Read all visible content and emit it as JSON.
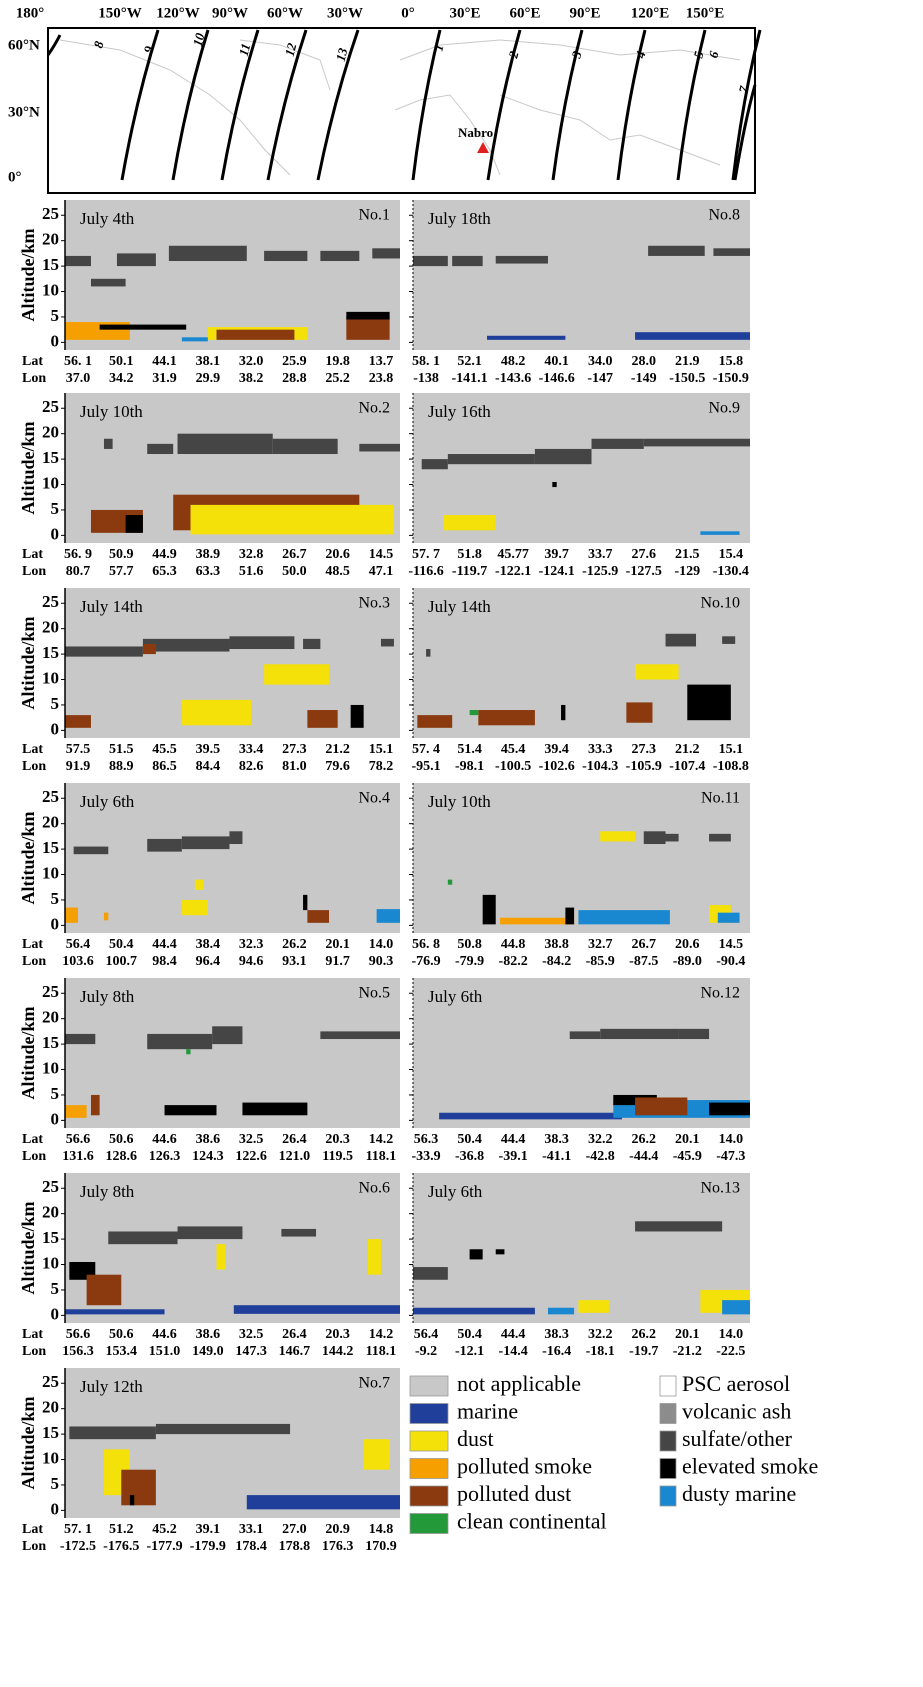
{
  "map": {
    "xticks": [
      "180°",
      "150°W",
      "120°W",
      "90°W",
      "60°W",
      "30°W",
      "0°",
      "30°E",
      "60°E",
      "90°E",
      "120°E",
      "150°E"
    ],
    "yticks": [
      "60°N",
      "30°N",
      "0°"
    ],
    "volcano": "Nabro",
    "tracks": [
      "1",
      "2",
      "3",
      "4",
      "5",
      "6",
      "7",
      "8",
      "9",
      "10",
      "11",
      "12",
      "13"
    ]
  },
  "y_axis_label": "Altitude/km",
  "lat_label": "Lat",
  "lon_label": "Lon",
  "ylim": [
    -1.5,
    28
  ],
  "yticks": [
    0,
    5,
    10,
    15,
    20,
    25
  ],
  "xlim": [
    -0.3,
    7.44
  ],
  "legend": [
    {
      "name": "not applicable",
      "color": "#c8c8c8"
    },
    {
      "name": "marine",
      "color": "#1f3f9a"
    },
    {
      "name": "dust",
      "color": "#f5e10a"
    },
    {
      "name": "polluted smoke",
      "color": "#f5a000"
    },
    {
      "name": "polluted dust",
      "color": "#8b3a10"
    },
    {
      "name": "clean continental",
      "color": "#23993a"
    },
    {
      "name": "PSC aerosol",
      "color": "#ffffff"
    },
    {
      "name": "volcanic ash",
      "color": "#8c8c8c"
    },
    {
      "name": "sulfate/other",
      "color": "#454545"
    },
    {
      "name": "elevated smoke",
      "color": "#000000"
    },
    {
      "name": "dusty marine",
      "color": "#1a88d0"
    }
  ],
  "panels": [
    {
      "date": "July 4th",
      "number": "No.1",
      "lat": [
        "56. 1",
        "50.1",
        "44.1",
        "38.1",
        "32.0",
        "25.9",
        "19.8",
        "13.7"
      ],
      "lon": [
        "37.0",
        "34.2",
        "31.9",
        "29.9",
        "38.2",
        "28.8",
        "25.2",
        "23.8"
      ],
      "layers": [
        [
          8,
          -0.3,
          0.3,
          15,
          17
        ],
        [
          8,
          0.9,
          1.8,
          15,
          17.5
        ],
        [
          8,
          2.1,
          3.9,
          16,
          19
        ],
        [
          8,
          4.3,
          5.3,
          16,
          18
        ],
        [
          8,
          5.6,
          6.5,
          16,
          18
        ],
        [
          8,
          6.8,
          7.44,
          16.5,
          18.5
        ],
        [
          8,
          0.3,
          1.1,
          11,
          12.5
        ],
        [
          2,
          3.0,
          5.3,
          0.5,
          3
        ],
        [
          4,
          3.2,
          5.0,
          0.5,
          2.5
        ],
        [
          4,
          6.2,
          7.2,
          0.5,
          5
        ],
        [
          9,
          6.2,
          7.2,
          4.5,
          6
        ],
        [
          3,
          -0.3,
          1.2,
          0.5,
          4
        ],
        [
          9,
          0.5,
          2.5,
          2.5,
          3.5
        ],
        [
          10,
          2.4,
          3.0,
          0.2,
          1
        ]
      ]
    },
    {
      "date": "July 18th",
      "number": "No.8",
      "lat": [
        "58. 1",
        "52.1",
        "48.2",
        "40.1",
        "34.0",
        "28.0",
        "21.9",
        "15.8"
      ],
      "lon": [
        "-138",
        "-141.1",
        "-143.6",
        "-146.6",
        "-147",
        "-149",
        "-150.5",
        "-150.9"
      ],
      "layers": [
        [
          8,
          -0.3,
          0.5,
          15,
          17
        ],
        [
          8,
          0.6,
          1.3,
          15,
          17
        ],
        [
          8,
          1.6,
          2.8,
          15.5,
          17
        ],
        [
          8,
          5.1,
          6.4,
          17,
          19
        ],
        [
          8,
          6.6,
          7.44,
          17,
          18.5
        ],
        [
          1,
          1.4,
          3.2,
          0.5,
          1.3
        ],
        [
          1,
          4.8,
          7.44,
          0.5,
          2
        ]
      ]
    },
    {
      "date": "July 10th",
      "number": "No.2",
      "lat": [
        "56. 9",
        "50.9",
        "44.9",
        "38.9",
        "32.8",
        "26.7",
        "20.6",
        "14.5"
      ],
      "lon": [
        "80.7",
        "57.7",
        "65.3",
        "63.3",
        "51.6",
        "50.0",
        "48.5",
        "47.1"
      ],
      "layers": [
        [
          8,
          0.6,
          0.8,
          17,
          19
        ],
        [
          8,
          1.6,
          2.2,
          16,
          18
        ],
        [
          8,
          2.3,
          4.5,
          16,
          20
        ],
        [
          8,
          4.5,
          6.0,
          16,
          19
        ],
        [
          8,
          6.5,
          7.44,
          16.5,
          18
        ],
        [
          4,
          2.2,
          6.5,
          1,
          8
        ],
        [
          4,
          0.3,
          1.5,
          0.5,
          5
        ],
        [
          2,
          2.6,
          7.3,
          0.2,
          6
        ],
        [
          9,
          1.1,
          1.5,
          0.5,
          4
        ]
      ]
    },
    {
      "date": "July 16th",
      "number": "No.9",
      "lat": [
        "57. 7",
        "51.8",
        "45.77",
        "39.7",
        "33.7",
        "27.6",
        "21.5",
        "15.4"
      ],
      "lon": [
        "-116.6",
        "-119.7",
        "-122.1",
        "-124.1",
        "-125.9",
        "-127.5",
        "-129",
        "-130.4"
      ],
      "layers": [
        [
          8,
          -0.1,
          0.5,
          13,
          15
        ],
        [
          8,
          0.5,
          2.5,
          14,
          16
        ],
        [
          8,
          2.5,
          3.8,
          14,
          17
        ],
        [
          8,
          3.8,
          5.0,
          17,
          19
        ],
        [
          8,
          5.0,
          7.44,
          17.5,
          19
        ],
        [
          2,
          0.4,
          1.6,
          1,
          4
        ],
        [
          10,
          6.3,
          7.2,
          0.1,
          0.8
        ],
        [
          9,
          2.9,
          3.0,
          9.5,
          10.5
        ]
      ]
    },
    {
      "date": "July 14th",
      "number": "No.3",
      "lat": [
        "57.5",
        "51.5",
        "45.5",
        "39.5",
        "33.4",
        "27.3",
        "21.2",
        "15.1"
      ],
      "lon": [
        "91.9",
        "88.9",
        "86.5",
        "84.4",
        "82.6",
        "81.0",
        "79.6",
        "78.2"
      ],
      "layers": [
        [
          8,
          -0.3,
          1.5,
          14.5,
          16.5
        ],
        [
          8,
          1.5,
          3.5,
          15.5,
          18
        ],
        [
          8,
          3.5,
          5.0,
          16,
          18.5
        ],
        [
          8,
          5.2,
          5.6,
          16,
          18
        ],
        [
          8,
          7.0,
          7.3,
          16.5,
          18
        ],
        [
          4,
          1.5,
          1.8,
          15,
          17
        ],
        [
          2,
          2.4,
          4.0,
          1,
          6
        ],
        [
          4,
          -0.3,
          0.3,
          0.5,
          3
        ],
        [
          4,
          5.3,
          6.0,
          0.5,
          4
        ],
        [
          9,
          6.3,
          6.6,
          0.5,
          5
        ],
        [
          2,
          4.3,
          5.8,
          9,
          13
        ]
      ]
    },
    {
      "date": "July 14th",
      "number": "No.10",
      "lat": [
        "57. 4",
        "51.4",
        "45.4",
        "39.4",
        "33.3",
        "27.3",
        "21.2",
        "15.1"
      ],
      "lon": [
        "-95.1",
        "-98.1",
        "-100.5",
        "-102.6",
        "-104.3",
        "-105.9",
        "-107.4",
        "-108.8"
      ],
      "layers": [
        [
          8,
          0,
          0.1,
          14.5,
          16
        ],
        [
          8,
          5.5,
          6.2,
          16.5,
          19
        ],
        [
          8,
          6.8,
          7.1,
          17,
          18.5
        ],
        [
          4,
          -0.2,
          0.6,
          0.5,
          3
        ],
        [
          4,
          1.2,
          2.5,
          1,
          4
        ],
        [
          4,
          4.6,
          5.2,
          1.5,
          5.5
        ],
        [
          9,
          6.0,
          7.0,
          2,
          9
        ],
        [
          2,
          4.8,
          5.8,
          10,
          13
        ],
        [
          5,
          1.0,
          1.2,
          3,
          4
        ],
        [
          9,
          3.1,
          3.2,
          2,
          5
        ]
      ]
    },
    {
      "date": "July 6th",
      "number": "No.4",
      "lat": [
        "56.4",
        "50.4",
        "44.4",
        "38.4",
        "32.3",
        "26.2",
        "20.1",
        "14.0"
      ],
      "lon": [
        "103.6",
        "100.7",
        "98.4",
        "96.4",
        "94.6",
        "93.1",
        "91.7",
        "90.3"
      ],
      "layers": [
        [
          8,
          -0.1,
          0.7,
          14,
          15.5
        ],
        [
          8,
          1.6,
          2.4,
          14.5,
          17
        ],
        [
          8,
          2.4,
          3.5,
          15,
          17.5
        ],
        [
          8,
          3.5,
          3.8,
          16,
          18.5
        ],
        [
          2,
          2.4,
          3.0,
          2,
          5
        ],
        [
          2,
          2.7,
          2.9,
          7,
          9
        ],
        [
          10,
          6.9,
          7.44,
          0.5,
          3.2
        ],
        [
          3,
          -0.3,
          0,
          0.5,
          3.5
        ],
        [
          3,
          0.6,
          0.7,
          1,
          2.5
        ],
        [
          4,
          5.3,
          5.8,
          0.5,
          3
        ],
        [
          9,
          5.2,
          5.3,
          3,
          6
        ]
      ]
    },
    {
      "date": "July 10th",
      "number": "No.11",
      "lat": [
        "56. 8",
        "50.8",
        "44.8",
        "38.8",
        "32.7",
        "26.7",
        "20.6",
        "14.5"
      ],
      "lon": [
        "-76.9",
        "-79.9",
        "-82.2",
        "-84.2",
        "-85.9",
        "-87.5",
        "-89.0",
        "-90.4"
      ],
      "layers": [
        [
          8,
          5.0,
          5.5,
          16,
          18.5
        ],
        [
          8,
          5.5,
          5.8,
          16.5,
          18
        ],
        [
          8,
          6.5,
          7.0,
          16.5,
          18
        ],
        [
          3,
          1.7,
          3.4,
          0.2,
          1.5
        ],
        [
          10,
          3.5,
          5.6,
          0.2,
          3
        ],
        [
          9,
          3.2,
          3.4,
          0.2,
          3.5
        ],
        [
          9,
          1.3,
          1.6,
          0.2,
          6
        ],
        [
          2,
          4.0,
          4.8,
          16.5,
          18.5
        ],
        [
          2,
          6.5,
          7.0,
          0.5,
          4
        ],
        [
          10,
          6.7,
          7.2,
          0.5,
          2.5
        ],
        [
          5,
          0.5,
          0.6,
          8,
          9
        ]
      ]
    },
    {
      "date": "July 8th",
      "number": "No.5",
      "lat": [
        "56.6",
        "50.6",
        "44.6",
        "38.6",
        "32.5",
        "26.4",
        "20.3",
        "14.2"
      ],
      "lon": [
        "131.6",
        "128.6",
        "126.3",
        "124.3",
        "122.6",
        "121.0",
        "119.5",
        "118.1"
      ],
      "layers": [
        [
          8,
          -0.3,
          0.4,
          15,
          17
        ],
        [
          8,
          1.6,
          3.1,
          14,
          17
        ],
        [
          8,
          3.1,
          3.8,
          15,
          18.5
        ],
        [
          8,
          5.6,
          7.44,
          16,
          17.5
        ],
        [
          3,
          -0.3,
          0.2,
          0.5,
          3
        ],
        [
          9,
          3.8,
          5.3,
          1,
          3.5
        ],
        [
          9,
          2.0,
          3.2,
          1,
          3
        ],
        [
          4,
          0.3,
          0.5,
          1,
          5
        ],
        [
          5,
          2.5,
          2.6,
          13,
          14
        ]
      ]
    },
    {
      "date": "July 6th",
      "number": "No.12",
      "lat": [
        "56.3",
        "50.4",
        "44.4",
        "38.3",
        "32.2",
        "26.2",
        "20.1",
        "14.0"
      ],
      "lon": [
        "-33.9",
        "-36.8",
        "-39.1",
        "-41.1",
        "-42.8",
        "-44.4",
        "-45.9",
        "-47.3"
      ],
      "layers": [
        [
          8,
          3.3,
          4.0,
          16,
          17.5
        ],
        [
          8,
          4.0,
          5.8,
          16,
          18
        ],
        [
          8,
          5.8,
          6.5,
          16,
          18
        ],
        [
          1,
          0.3,
          4.5,
          0.2,
          1.5
        ],
        [
          10,
          4.3,
          7.44,
          0.5,
          4
        ],
        [
          9,
          4.3,
          5.3,
          3,
          5
        ],
        [
          9,
          6.5,
          7.44,
          1,
          3.5
        ],
        [
          4,
          4.8,
          6.0,
          1,
          4.5
        ]
      ]
    },
    {
      "date": "July 8th",
      "number": "No.6",
      "lat": [
        "56.6",
        "50.6",
        "44.6",
        "38.6",
        "32.5",
        "26.4",
        "20.3",
        "14.2"
      ],
      "lon": [
        "156.3",
        "153.4",
        "151.0",
        "149.0",
        "147.3",
        "146.7",
        "144.2",
        "118.1"
      ],
      "layers": [
        [
          8,
          0.7,
          2.3,
          14,
          16.5
        ],
        [
          8,
          2.3,
          3.8,
          15,
          17.5
        ],
        [
          8,
          4.7,
          5.5,
          15.5,
          17
        ],
        [
          1,
          -0.3,
          2.0,
          0.2,
          1.2
        ],
        [
          1,
          3.6,
          7.44,
          0.3,
          2
        ],
        [
          9,
          -0.2,
          0.4,
          7,
          10.5
        ],
        [
          4,
          0.2,
          1.0,
          2,
          8
        ],
        [
          2,
          3.2,
          3.4,
          9,
          14
        ],
        [
          2,
          6.7,
          7.0,
          8,
          15
        ]
      ]
    },
    {
      "date": "July 6th",
      "number": "No.13",
      "lat": [
        "56.4",
        "50.4",
        "44.4",
        "38.3",
        "32.2",
        "26.2",
        "20.1",
        "14.0"
      ],
      "lon": [
        "-9.2",
        "-12.1",
        "-14.4",
        "-16.4",
        "-18.1",
        "-19.7",
        "-21.2",
        "-22.5"
      ],
      "layers": [
        [
          8,
          -0.3,
          0.5,
          7,
          9.5
        ],
        [
          8,
          4.8,
          6.8,
          16.5,
          18.5
        ],
        [
          9,
          1.0,
          1.3,
          11,
          13
        ],
        [
          9,
          1.6,
          1.8,
          12,
          13
        ],
        [
          1,
          -0.3,
          2.5,
          0.2,
          1.5
        ],
        [
          2,
          3.5,
          4.2,
          0.5,
          3
        ],
        [
          2,
          6.3,
          7.44,
          0.5,
          5
        ],
        [
          10,
          6.8,
          7.44,
          0.2,
          3
        ],
        [
          10,
          2.8,
          3.4,
          0.2,
          1.5
        ]
      ]
    },
    {
      "date": "July 12th",
      "number": "No.7",
      "lat": [
        "57. 1",
        "51.2",
        "45.2",
        "39.1",
        "33.1",
        "27.0",
        "20.9",
        "14.8"
      ],
      "lon": [
        "-172.5",
        "-176.5",
        "-177.9",
        "-179.9",
        "178.4",
        "178.8",
        "176.3",
        "170.9"
      ],
      "layers": [
        [
          8,
          -0.2,
          1.8,
          14,
          16.5
        ],
        [
          8,
          1.8,
          4.9,
          15,
          17
        ],
        [
          1,
          3.9,
          7.44,
          0.2,
          3
        ],
        [
          2,
          0.6,
          1.2,
          3,
          12
        ],
        [
          4,
          1.0,
          1.8,
          1,
          8
        ],
        [
          2,
          6.6,
          7.2,
          8,
          14
        ],
        [
          9,
          1.2,
          1.3,
          1,
          3
        ]
      ]
    }
  ]
}
